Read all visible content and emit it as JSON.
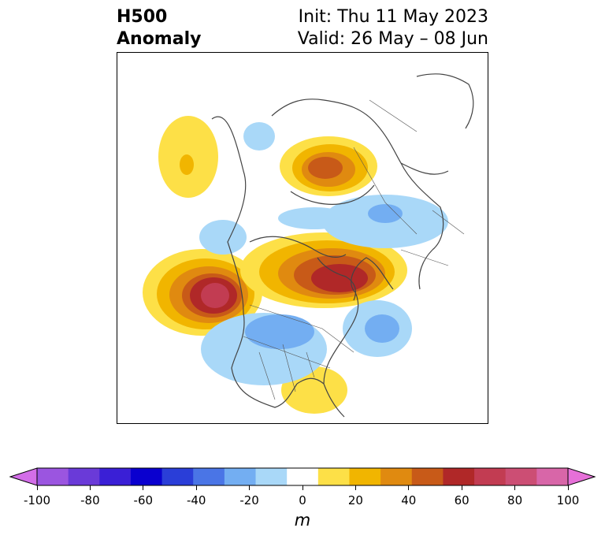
{
  "title": {
    "left_line1": "H500",
    "left_line2": "Anomaly",
    "right_line1": "Init: Thu 11 May 2023",
    "right_line2": "Valid: 26 May – 08 Jun"
  },
  "colorbar": {
    "levels": [
      -100,
      -90,
      -80,
      -70,
      -60,
      -50,
      -40,
      -30,
      -20,
      -10,
      10,
      20,
      30,
      40,
      50,
      60,
      70,
      80,
      90,
      100
    ],
    "colors": [
      "#d36ee8",
      "#9b55e0",
      "#6a3ad8",
      "#3a1fd6",
      "#0a00cf",
      "#2a3ed8",
      "#4a75e6",
      "#73aef2",
      "#a9d8f8",
      "#ffffff",
      "#fde047",
      "#f1b500",
      "#e08a10",
      "#c85a18",
      "#b02828",
      "#c23c52",
      "#cc4e74",
      "#d866a8",
      "#e670d8"
    ],
    "tick_labels": [
      "-100",
      "-80",
      "-60",
      "-40",
      "-20",
      "0",
      "20",
      "40",
      "60",
      "80",
      "100"
    ],
    "units": "m"
  },
  "map": {
    "projection": "north-polar-stereographic",
    "anomaly_centers": [
      {
        "region": "Eastern Pacific / Gulf of Alaska",
        "sign": "positive",
        "max": 60
      },
      {
        "region": "Hudson Bay / Northern Canada",
        "sign": "positive",
        "max": 60
      },
      {
        "region": "Northern Siberia",
        "sign": "positive",
        "max": 40
      },
      {
        "region": "Alaska",
        "sign": "positive",
        "max": 20
      },
      {
        "region": "Southeastern US",
        "sign": "positive",
        "max": 10
      },
      {
        "region": "Central US",
        "sign": "negative",
        "max": -30
      },
      {
        "region": "North Atlantic",
        "sign": "negative",
        "max": -30
      },
      {
        "region": "Northern Europe / Scandinavia",
        "sign": "negative",
        "max": -20
      }
    ]
  }
}
